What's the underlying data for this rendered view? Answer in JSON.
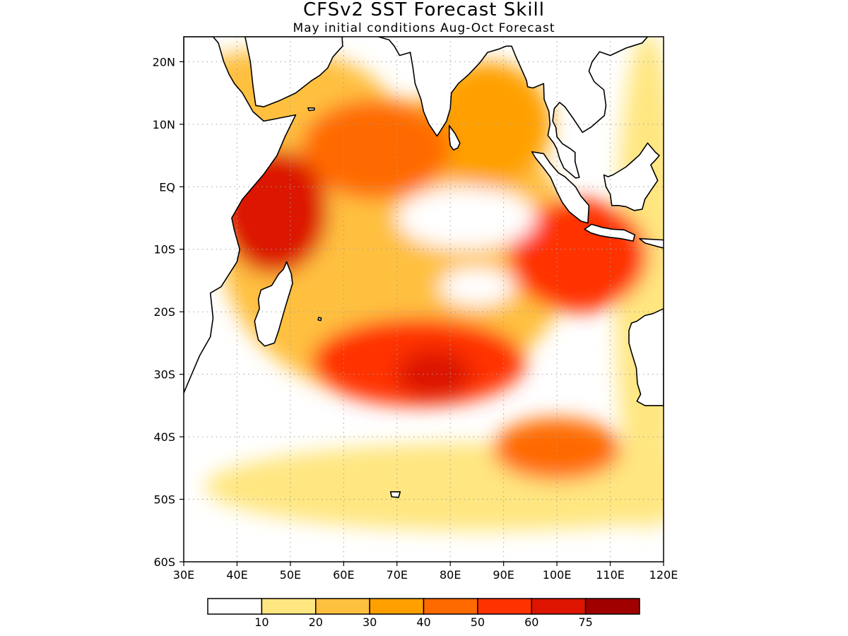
{
  "figure": {
    "title": "CFSv2 SST Forecast Skill",
    "subtitle": "May initial conditions  Aug-Oct Forecast"
  },
  "map": {
    "region": "Indian Ocean",
    "lon_range": [
      30,
      120
    ],
    "lat_range": [
      -60,
      24
    ],
    "grid": true,
    "lon_ticks": [
      {
        "value": 30,
        "label": "30E"
      },
      {
        "value": 40,
        "label": "40E"
      },
      {
        "value": 50,
        "label": "50E"
      },
      {
        "value": 60,
        "label": "60E"
      },
      {
        "value": 70,
        "label": "70E"
      },
      {
        "value": 80,
        "label": "80E"
      },
      {
        "value": 90,
        "label": "90E"
      },
      {
        "value": 100,
        "label": "100E"
      },
      {
        "value": 110,
        "label": "110E"
      },
      {
        "value": 120,
        "label": "120E"
      }
    ],
    "lat_ticks": [
      {
        "value": 20,
        "label": "20N"
      },
      {
        "value": 10,
        "label": "10N"
      },
      {
        "value": 0,
        "label": "EQ"
      },
      {
        "value": -10,
        "label": "10S"
      },
      {
        "value": -20,
        "label": "20S"
      },
      {
        "value": -30,
        "label": "30S"
      },
      {
        "value": -40,
        "label": "40S"
      },
      {
        "value": -50,
        "label": "50S"
      },
      {
        "value": -60,
        "label": "60S"
      }
    ]
  },
  "colorbar": {
    "colors": [
      "#ffffff",
      "#ffe680",
      "#ffc040",
      "#ffa000",
      "#ff6a00",
      "#ff3200",
      "#dc1400",
      "#a00000"
    ],
    "labels": [
      "10",
      "20",
      "30",
      "40",
      "50",
      "60",
      "75"
    ]
  },
  "colors": {
    "frame": "#000000",
    "grid": "#a0a0a0",
    "coast": "#000000"
  },
  "skill_field": {
    "units": "percent",
    "base_level": 10,
    "features": [
      {
        "name": "southern-band",
        "lon": 86,
        "lat": -48,
        "lon_half_width": 52,
        "lat_half_width": 7,
        "level": 10
      },
      {
        "name": "eastern-edge",
        "lon": 117,
        "lat": -15,
        "lon_half_width": 6,
        "lat_half_width": 40,
        "level": 10
      },
      {
        "name": "somali-arabian",
        "lon": 47,
        "lat": 12,
        "lon_half_width": 22,
        "lat_half_width": 10,
        "level": 20
      },
      {
        "name": "main-tongue",
        "lon": 70,
        "lat": -10,
        "lon_half_width": 33,
        "lat_half_width": 24,
        "level": 20
      },
      {
        "name": "bay-of-bengal",
        "lon": 87,
        "lat": 10,
        "lon_half_width": 12,
        "lat_half_width": 10,
        "level": 30
      },
      {
        "name": "arabian-sea-interior",
        "lon": 66,
        "lat": 6,
        "lon_half_width": 14,
        "lat_half_width": 8,
        "level": 40
      },
      {
        "name": "eastern-tropics",
        "lon": 104,
        "lat": -11,
        "lon_half_width": 13,
        "lat_half_width": 9,
        "level": 50
      },
      {
        "name": "west-equatorial",
        "lon": 47,
        "lat": -4,
        "lon_half_width": 10,
        "lat_half_width": 10,
        "level": 60
      },
      {
        "name": "subtropical-band",
        "lon": 74,
        "lat": -28,
        "lon_half_width": 20,
        "lat_half_width": 7,
        "level": 50
      },
      {
        "name": "subtropical-core",
        "lon": 77,
        "lat": -30,
        "lon_half_width": 7,
        "lat_half_width": 4,
        "level": 60
      },
      {
        "name": "se-40s",
        "lon": 100,
        "lat": -42,
        "lon_half_width": 12,
        "lat_half_width": 5,
        "level": 40
      }
    ],
    "low_skill_gaps": [
      {
        "name": "central-equatorial-gap",
        "lon": 83,
        "lat": -5,
        "lon_half_width": 13,
        "lat_half_width": 5
      },
      {
        "name": "subtropical-gap",
        "lon": 85,
        "lat": -16,
        "lon_half_width": 7,
        "lat_half_width": 3
      }
    ]
  }
}
